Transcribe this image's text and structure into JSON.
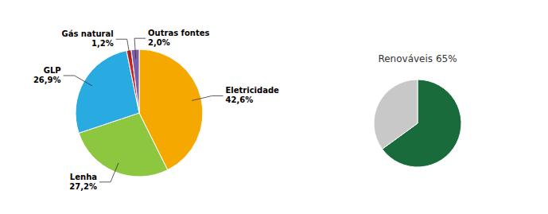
{
  "chart_data": [
    {
      "type": "pie",
      "categories": [
        "Eletricidade",
        "Lenha",
        "GLP",
        "Gás natural",
        "Outras fontes"
      ],
      "values": [
        42.6,
        27.2,
        26.9,
        1.2,
        2.0
      ],
      "value_labels": [
        "42,6%",
        "27,2%",
        "26,9%",
        "1,2%",
        "2,0%"
      ],
      "data_labels": true,
      "colors": [
        "#F5A800",
        "#8DC63F",
        "#29ABE2",
        "#CC2222",
        "#7B5EA7"
      ]
    },
    {
      "type": "pie",
      "title": "Renováveis 65%",
      "values": [
        65,
        35
      ],
      "colors": [
        "#1A6B3C",
        "#C8C8C8"
      ]
    }
  ]
}
